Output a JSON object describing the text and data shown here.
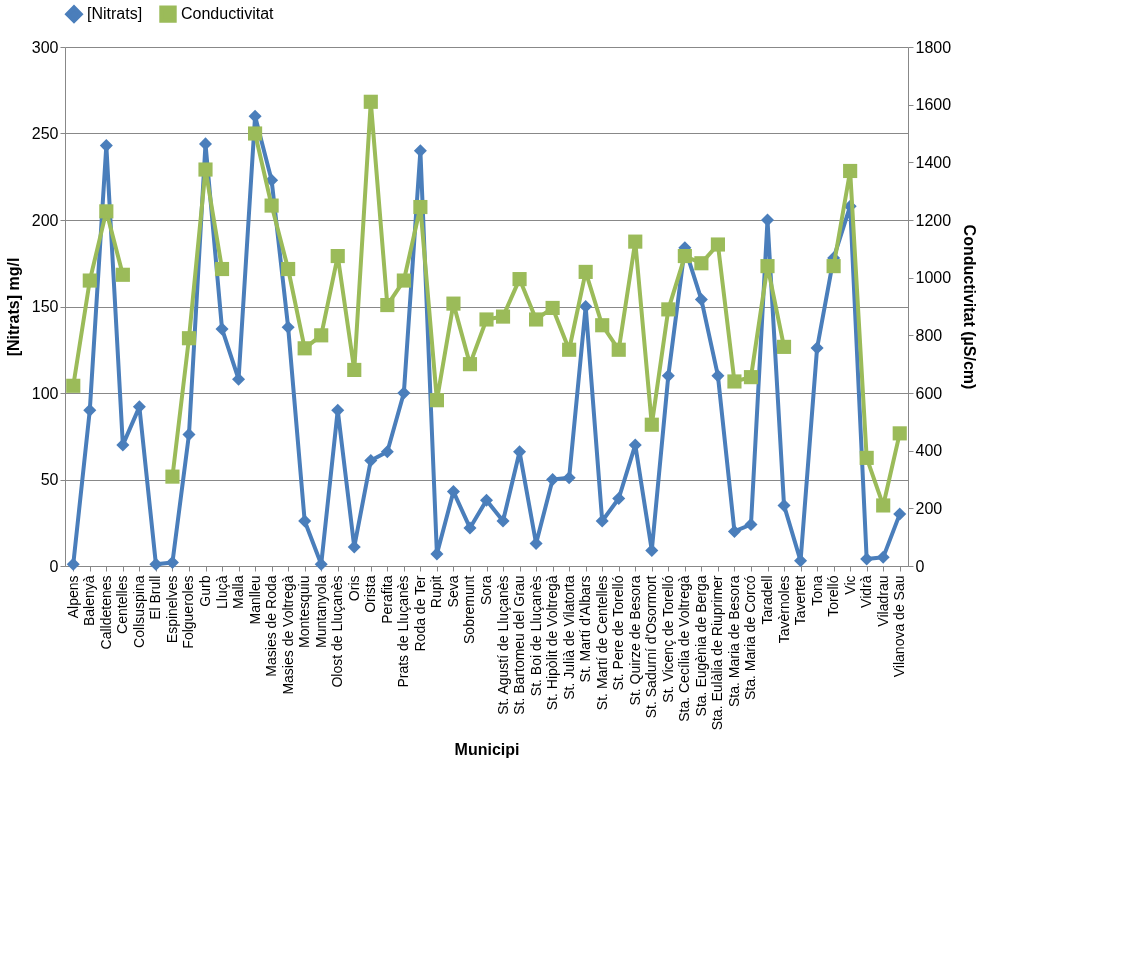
{
  "chart_data": {
    "type": "line",
    "xlabel": "Municipi",
    "ylabel": "[Nitrats] mg/l",
    "y2label": "Conductivitat (µS/cm)",
    "categories": [
      "Alpens",
      "Balenyà",
      "Calldetenes",
      "Centelles",
      "Collsuspina",
      "El Brull",
      "Espinelves",
      "Folgueroles",
      "Gurb",
      "Lluçà",
      "Malla",
      "Manlleu",
      "Masies de Roda",
      "Masies de Voltregà",
      "Montesquiu",
      "Muntanyola",
      "Olost de Lluçanès",
      "Oris",
      "Orista",
      "Perafita",
      "Prats de Lluçanès",
      "Roda de Ter",
      "Rupit",
      "Seva",
      "Sobremunt",
      "Sora",
      "St. Agustí de Lluçanès",
      "St. Bartomeu del Grau",
      "St. Boi de Lluçanès",
      "St. Hipòlit de Voltregà",
      "St. Julià de Vilatorta",
      "St. Martí d'Albars",
      "St. Martí de Centelles",
      "St. Pere de Torelló",
      "St. Quirze de Besora",
      "St. Sadurní d'Osormort",
      "St. Vicenç de Torelló",
      "Sta. Cecília de Voltregà",
      "Sta. Eugènia de Berga",
      "Sta. Eulàlia de Riuprimer",
      "Sta. Maria de Besora",
      "Sta. Maria de Corcó",
      "Taradell",
      "Tavèrnoles",
      "Tavertet",
      "Tona",
      "Torelló",
      "Vic",
      "Vidrà",
      "Viladrau",
      "Vilanova de Sau"
    ],
    "series": [
      {
        "name": "[Nitrats]",
        "color": "#4a7ebb",
        "marker": "diamond",
        "values": [
          1,
          90,
          243,
          70,
          92,
          1,
          2,
          76,
          244,
          137,
          108,
          260,
          223,
          138,
          26,
          1,
          90,
          11,
          61,
          66,
          100,
          240,
          7,
          43,
          22,
          38,
          26,
          66,
          13,
          50,
          51,
          150,
          26,
          39,
          70,
          9,
          110,
          184,
          154,
          110,
          20,
          24,
          200,
          35,
          3,
          126,
          178,
          208,
          4,
          5,
          30
        ]
      },
      {
        "name": "Conductivitat",
        "color": "#9bbb59",
        "marker": "square",
        "axis": "y2",
        "values": [
          625,
          990,
          1230,
          1010,
          null,
          null,
          310,
          790,
          1375,
          1030,
          null,
          1500,
          1250,
          1030,
          755,
          800,
          1075,
          680,
          1610,
          905,
          990,
          1245,
          575,
          910,
          700,
          855,
          865,
          995,
          855,
          895,
          750,
          1020,
          835,
          750,
          1125,
          490,
          890,
          1075,
          1050,
          1115,
          640,
          655,
          1040,
          760,
          null,
          null,
          1040,
          1370,
          375,
          210,
          460
        ]
      }
    ],
    "ylim": [
      0,
      300
    ],
    "yticks": [
      0,
      50,
      100,
      150,
      200,
      250,
      300
    ],
    "y2lim": [
      0,
      1800
    ],
    "y2ticks": [
      0,
      200,
      400,
      600,
      800,
      1000,
      1200,
      1400,
      1600,
      1800
    ],
    "grid": "y",
    "legend": "top",
    "line_style": "solid"
  }
}
